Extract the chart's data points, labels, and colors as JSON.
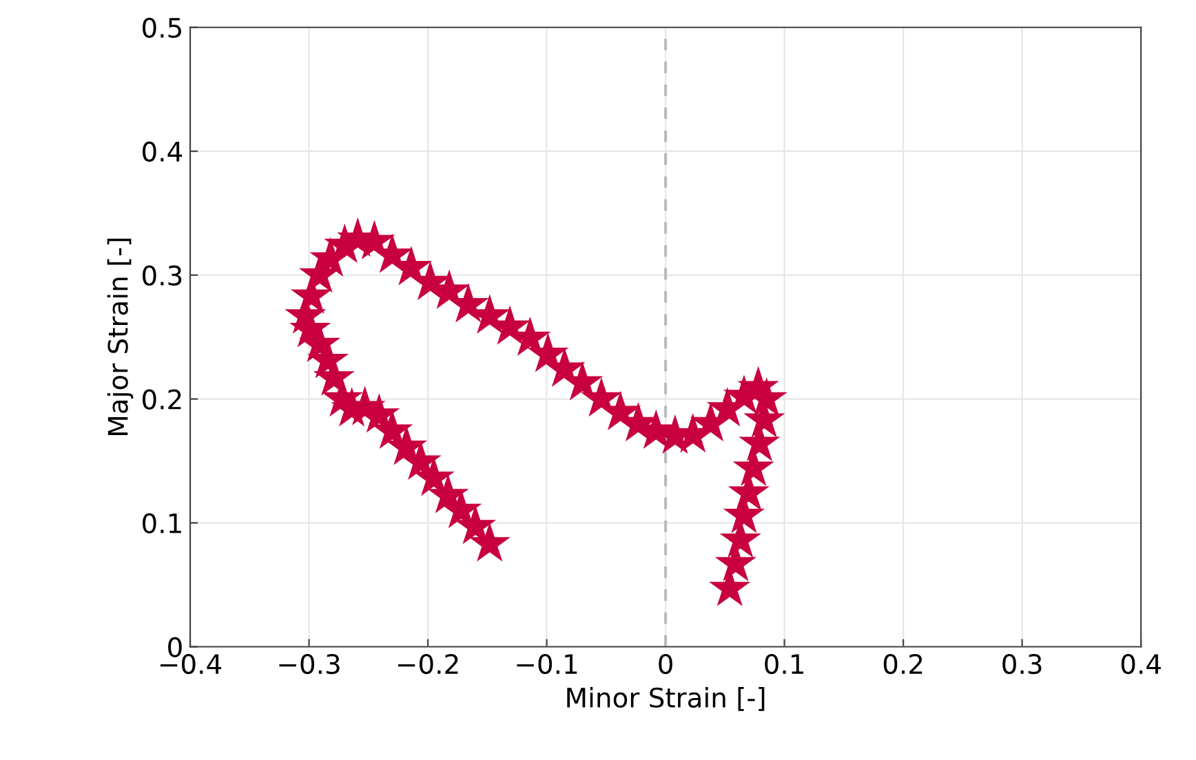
{
  "chart_data": {
    "type": "scatter",
    "xlabel": "Minor Strain [-]",
    "ylabel": "Major Strain [-]",
    "xlim": [
      -0.4,
      0.4
    ],
    "ylim": [
      0,
      0.5
    ],
    "xticks": [
      {
        "value": -0.4,
        "label": "−0.4"
      },
      {
        "value": -0.3,
        "label": "−0.3"
      },
      {
        "value": -0.2,
        "label": "−0.2"
      },
      {
        "value": -0.1,
        "label": "−0.1"
      },
      0,
      0.1,
      0.2,
      0.3,
      0.4
    ],
    "yticks": [
      0,
      0.1,
      0.2,
      0.3,
      0.4,
      0.5
    ],
    "grid": true,
    "marker": "star",
    "ref_lines": [
      {
        "axis": "x",
        "value": 0,
        "color": "#bbbbbb",
        "line_style": "dashed"
      }
    ],
    "series": [
      {
        "color": "#c8003f",
        "x": [
          -0.148,
          -0.16,
          -0.172,
          -0.183,
          -0.195,
          -0.206,
          -0.218,
          -0.23,
          -0.241,
          -0.253,
          -0.264,
          -0.272,
          -0.279,
          -0.284,
          -0.291,
          -0.299,
          -0.303,
          -0.298,
          -0.291,
          -0.282,
          -0.27,
          -0.259,
          -0.245,
          -0.23,
          -0.214,
          -0.198,
          -0.182,
          -0.166,
          -0.148,
          -0.131,
          -0.114,
          -0.099,
          -0.085,
          -0.07,
          -0.054,
          -0.038,
          -0.023,
          -0.008,
          0.008,
          0.023,
          0.038,
          0.052,
          0.066,
          0.078,
          0.085,
          0.083,
          0.079,
          0.074,
          0.07,
          0.066,
          0.063,
          0.059,
          0.054
        ],
        "values": [
          0.083,
          0.097,
          0.11,
          0.122,
          0.136,
          0.149,
          0.161,
          0.174,
          0.187,
          0.193,
          0.192,
          0.2,
          0.217,
          0.231,
          0.244,
          0.256,
          0.267,
          0.283,
          0.3,
          0.313,
          0.324,
          0.329,
          0.327,
          0.316,
          0.306,
          0.294,
          0.287,
          0.276,
          0.267,
          0.258,
          0.249,
          0.236,
          0.224,
          0.213,
          0.2,
          0.189,
          0.18,
          0.174,
          0.17,
          0.171,
          0.18,
          0.192,
          0.202,
          0.209,
          0.2,
          0.183,
          0.164,
          0.144,
          0.124,
          0.106,
          0.086,
          0.067,
          0.047
        ]
      }
    ]
  }
}
